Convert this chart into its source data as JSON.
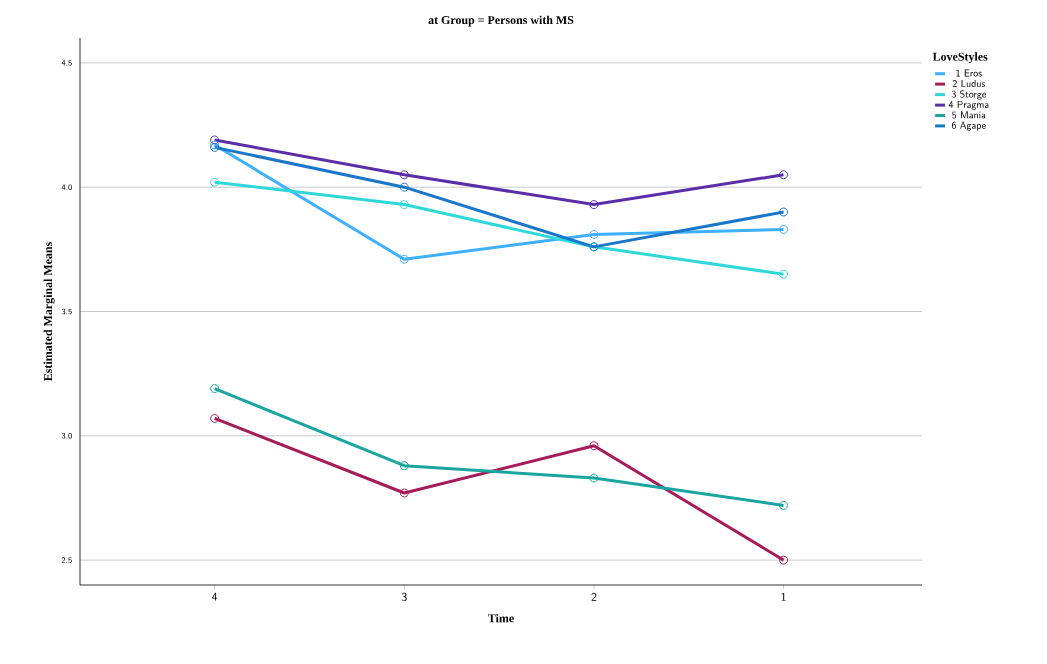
{
  "chart_data": {
    "type": "line",
    "title": "at Group = Persons with MS",
    "xlabel": "Time",
    "ylabel": "Estimated Marginal Means",
    "legend_title": "LoveStyles",
    "categories": [
      "4",
      "3",
      "2",
      "1"
    ],
    "series": [
      {
        "name": "1 Eros",
        "color": "#3eb0ff",
        "values": [
          4.17,
          3.71,
          3.81,
          3.83
        ]
      },
      {
        "name": "2 Ludus",
        "color": "#a51c5b",
        "values": [
          3.07,
          2.77,
          2.96,
          2.5
        ]
      },
      {
        "name": "3 Storge",
        "color": "#2ed8d8",
        "values": [
          4.02,
          3.93,
          3.76,
          3.65
        ]
      },
      {
        "name": "4 Pragma",
        "color": "#5b2da8",
        "values": [
          4.19,
          4.05,
          3.93,
          4.05
        ]
      },
      {
        "name": "5 Mania",
        "color": "#19a5a0",
        "values": [
          3.19,
          2.88,
          2.83,
          2.72
        ]
      },
      {
        "name": "6 Agape",
        "color": "#1976c8",
        "values": [
          4.16,
          4.0,
          3.76,
          3.9
        ]
      }
    ],
    "ylim": [
      2.4,
      4.6
    ],
    "yticks": [
      2.5,
      {
        "value": 3.0,
        "label": "3.0"
      },
      3.5,
      {
        "value": 4.0,
        "label": "4.0"
      },
      4.5
    ],
    "grid": "y",
    "legend": "right",
    "marker": "circle",
    "line_style": "solid"
  }
}
